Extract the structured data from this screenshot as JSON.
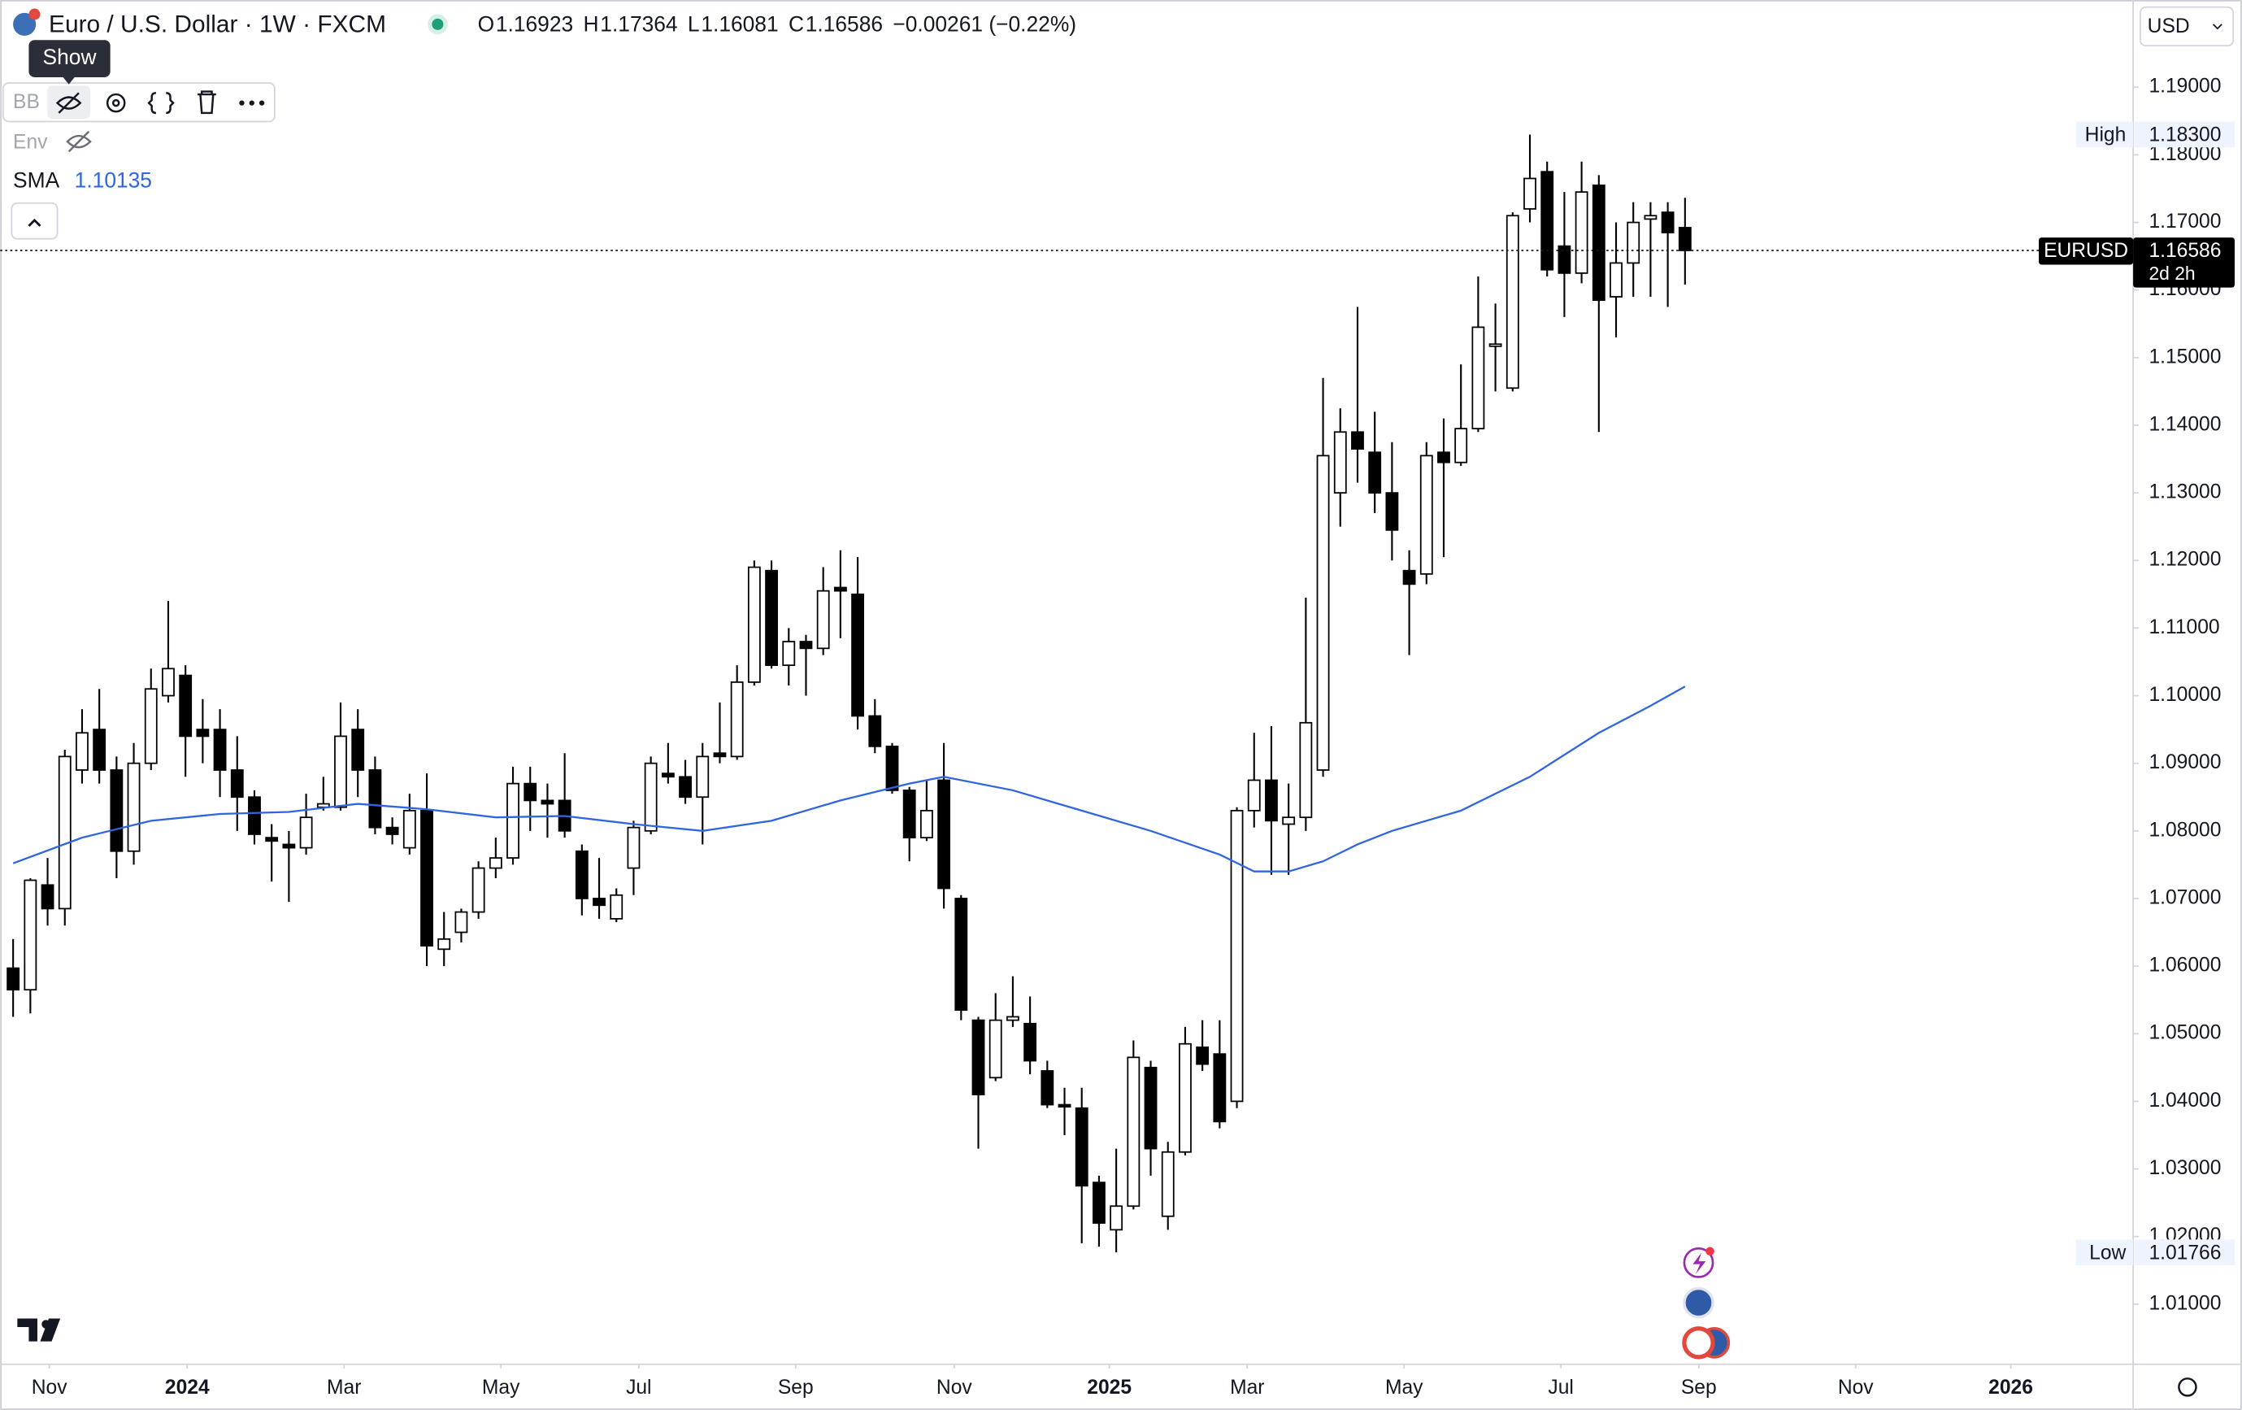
{
  "header": {
    "title": "Euro / U.S. Dollar · 1W · FXCM",
    "ohlc": [
      {
        "label": "O",
        "value": "1.16923"
      },
      {
        "label": "H",
        "value": "1.17364"
      },
      {
        "label": "L",
        "value": "1.16081"
      },
      {
        "label": "C",
        "value": "1.16586"
      }
    ],
    "change": "−0.00261 (−0.22%)",
    "tooltip": "Show",
    "currency": "USD"
  },
  "indicators": [
    {
      "name": "BB"
    },
    {
      "name": "Env"
    },
    {
      "name": "SMA",
      "value": "1.10135"
    }
  ],
  "chart_data": {
    "type": "candlestick",
    "x": [
      0,
      1,
      2,
      3,
      4,
      5,
      6,
      7,
      8,
      9,
      10,
      11,
      12,
      13,
      14,
      15,
      16,
      17,
      18,
      19,
      20,
      21,
      22,
      23,
      24,
      25,
      26,
      27,
      28,
      29,
      30,
      31,
      32,
      33,
      34,
      35,
      36,
      37,
      38,
      39,
      40,
      41,
      42,
      43,
      44,
      45,
      46,
      47,
      48,
      49,
      50,
      51,
      52,
      53,
      54,
      55,
      56,
      57,
      58,
      59,
      60,
      61,
      62,
      63,
      64,
      65,
      66,
      67,
      68,
      69,
      70,
      71,
      72,
      73,
      74,
      75,
      76,
      77,
      78,
      79,
      80,
      81,
      82,
      83,
      84,
      85,
      86,
      87,
      88,
      89,
      90,
      91,
      92,
      93,
      94,
      95,
      96,
      97
    ],
    "open": [
      1.0597,
      1.0565,
      1.072,
      1.0685,
      1.089,
      1.095,
      1.089,
      1.077,
      1.09,
      1.1,
      1.103,
      1.095,
      1.095,
      1.089,
      1.085,
      1.079,
      1.078,
      1.0775,
      1.0835,
      1.0835,
      1.095,
      1.089,
      1.0805,
      1.0775,
      1.083,
      1.0625,
      1.065,
      1.068,
      1.0745,
      1.076,
      1.087,
      1.0845,
      1.0845,
      1.077,
      1.07,
      1.067,
      1.0745,
      1.08,
      1.0885,
      1.088,
      1.085,
      1.0915,
      1.091,
      1.102,
      1.1185,
      1.1045,
      1.108,
      1.107,
      1.116,
      1.115,
      1.097,
      1.0925,
      1.086,
      1.079,
      1.0875,
      1.07,
      1.052,
      1.0435,
      1.052,
      1.0515,
      1.0445,
      1.0395,
      1.039,
      1.028,
      1.021,
      1.0245,
      1.045,
      1.023,
      1.0325,
      1.048,
      1.047,
      1.04,
      1.083,
      1.0875,
      1.081,
      1.082,
      1.089,
      1.13,
      1.139,
      1.136,
      1.13,
      1.1185,
      1.118,
      1.136,
      1.1345,
      1.1395,
      1.152,
      1.1455,
      1.172,
      1.1775,
      1.1665,
      1.1625,
      1.1755,
      1.159,
      1.164,
      1.1705,
      1.1715,
      1.16923
    ],
    "high": [
      1.064,
      1.073,
      1.076,
      1.092,
      1.098,
      1.101,
      1.091,
      1.093,
      1.104,
      1.114,
      1.1045,
      1.0995,
      1.098,
      1.094,
      1.086,
      1.081,
      1.08,
      1.0855,
      1.088,
      1.099,
      1.098,
      1.091,
      1.082,
      1.0855,
      1.0885,
      1.068,
      1.0685,
      1.0755,
      1.079,
      1.0895,
      1.0895,
      1.087,
      1.0915,
      1.078,
      1.076,
      1.0715,
      1.0815,
      1.091,
      1.093,
      1.0905,
      1.093,
      1.099,
      1.1045,
      1.12,
      1.12,
      1.11,
      1.109,
      1.119,
      1.1215,
      1.1205,
      1.0995,
      1.093,
      1.0865,
      1.0875,
      1.093,
      1.0705,
      1.0525,
      1.056,
      1.0585,
      1.0555,
      1.046,
      1.042,
      1.042,
      1.029,
      1.033,
      1.049,
      1.046,
      1.034,
      1.051,
      1.052,
      1.052,
      1.0835,
      1.0945,
      1.0955,
      1.087,
      1.1145,
      1.147,
      1.1425,
      1.1575,
      1.142,
      1.1375,
      1.1215,
      1.1375,
      1.141,
      1.149,
      1.162,
      1.158,
      1.1715,
      1.183,
      1.179,
      1.1745,
      1.179,
      1.177,
      1.17,
      1.173,
      1.173,
      1.173,
      1.17364
    ],
    "low": [
      1.0525,
      1.053,
      1.066,
      1.066,
      1.087,
      1.087,
      1.073,
      1.075,
      1.089,
      1.099,
      1.088,
      1.09,
      1.085,
      1.08,
      1.078,
      1.0725,
      1.0695,
      1.0765,
      1.083,
      1.083,
      1.085,
      1.0795,
      1.078,
      1.0765,
      1.06,
      1.06,
      1.0635,
      1.067,
      1.073,
      1.075,
      1.08,
      1.079,
      1.079,
      1.0675,
      1.067,
      1.0665,
      1.0705,
      1.0795,
      1.087,
      1.084,
      1.078,
      1.09,
      1.0905,
      1.1015,
      1.104,
      1.1015,
      1.1,
      1.106,
      1.1085,
      1.095,
      1.0915,
      1.0855,
      1.0755,
      1.0785,
      1.0685,
      1.052,
      1.033,
      1.043,
      1.051,
      1.044,
      1.039,
      1.035,
      1.019,
      1.0185,
      1.01766,
      1.024,
      1.029,
      1.021,
      1.032,
      1.0445,
      1.036,
      1.039,
      1.0805,
      1.0735,
      1.0735,
      1.08,
      1.088,
      1.125,
      1.1315,
      1.127,
      1.12,
      1.106,
      1.1165,
      1.1205,
      1.134,
      1.139,
      1.145,
      1.145,
      1.17,
      1.162,
      1.156,
      1.161,
      1.139,
      1.153,
      1.159,
      1.159,
      1.1575,
      1.16081
    ],
    "close": [
      1.0565,
      1.0727,
      1.0685,
      1.091,
      1.0945,
      1.089,
      1.077,
      1.09,
      1.101,
      1.104,
      1.094,
      1.094,
      1.089,
      1.085,
      1.0795,
      1.0785,
      1.0775,
      1.082,
      1.084,
      1.094,
      1.089,
      1.0805,
      1.0795,
      1.083,
      1.063,
      1.064,
      1.068,
      1.0745,
      1.076,
      1.087,
      1.0845,
      1.084,
      1.08,
      1.07,
      1.069,
      1.0705,
      1.0805,
      1.09,
      1.088,
      1.085,
      1.091,
      1.091,
      1.102,
      1.119,
      1.1045,
      1.108,
      1.107,
      1.1155,
      1.1155,
      1.097,
      1.0925,
      1.086,
      1.079,
      1.083,
      1.0715,
      1.0535,
      1.041,
      1.052,
      1.0525,
      1.046,
      1.0395,
      1.0393,
      1.0275,
      1.022,
      1.0245,
      1.0465,
      1.033,
      1.0325,
      1.0485,
      1.0455,
      1.037,
      1.083,
      1.0875,
      1.0815,
      1.082,
      1.096,
      1.1355,
      1.139,
      1.1365,
      1.13,
      1.1245,
      1.1165,
      1.1355,
      1.1345,
      1.1395,
      1.1545,
      1.152,
      1.171,
      1.1765,
      1.163,
      1.1625,
      1.1745,
      1.1585,
      1.164,
      1.17,
      1.171,
      1.1685,
      1.16586
    ],
    "up_color": "#ffffff",
    "down_color": "#000000",
    "wick_color": "#000000",
    "sma": {
      "name": "SMA",
      "color": "#2f66e0",
      "x": [
        0,
        4,
        8,
        12,
        16,
        20,
        24,
        28,
        32,
        36,
        40,
        44,
        48,
        52,
        54,
        58,
        62,
        66,
        70,
        72,
        74,
        76,
        78,
        80,
        84,
        88,
        92,
        95,
        97
      ],
      "values": [
        1.0752,
        1.079,
        1.0815,
        1.0825,
        1.0828,
        1.084,
        1.0832,
        1.082,
        1.0822,
        1.081,
        1.08,
        1.0815,
        1.0845,
        1.087,
        1.088,
        1.086,
        1.083,
        1.08,
        1.0765,
        1.074,
        1.074,
        1.0755,
        1.078,
        1.08,
        1.083,
        1.088,
        1.0945,
        1.0985,
        1.10135
      ]
    },
    "xlim": [
      -0.75,
      123.0
    ],
    "xticks": [
      {
        "value": 2.1,
        "label": "Nov"
      },
      {
        "value": 10.1,
        "label": "2024"
      },
      {
        "value": 19.2,
        "label": "Mar"
      },
      {
        "value": 28.3,
        "label": "May"
      },
      {
        "value": 36.3,
        "label": "Jul"
      },
      {
        "value": 45.4,
        "label": "Sep"
      },
      {
        "value": 54.6,
        "label": "Nov"
      },
      {
        "value": 63.6,
        "label": "2025"
      },
      {
        "value": 71.6,
        "label": "Mar"
      },
      {
        "value": 80.7,
        "label": "May"
      },
      {
        "value": 89.8,
        "label": "Jul"
      },
      {
        "value": 97.8,
        "label": "Sep"
      },
      {
        "value": 106.9,
        "label": "Nov"
      },
      {
        "value": 115.9,
        "label": "2026"
      }
    ],
    "ylim": [
      1.00111,
      1.2029
    ],
    "yticks": [
      {
        "value": 1.19,
        "label": "1.19000"
      },
      {
        "value": 1.18,
        "label": "1.18000"
      },
      {
        "value": 1.17,
        "label": "1.17000"
      },
      {
        "value": 1.16,
        "label": "1.16000"
      },
      {
        "value": 1.15,
        "label": "1.15000"
      },
      {
        "value": 1.14,
        "label": "1.14000"
      },
      {
        "value": 1.13,
        "label": "1.13000"
      },
      {
        "value": 1.12,
        "label": "1.12000"
      },
      {
        "value": 1.11,
        "label": "1.11000"
      },
      {
        "value": 1.1,
        "label": "1.10000"
      },
      {
        "value": 1.09,
        "label": "1.09000"
      },
      {
        "value": 1.08,
        "label": "1.08000"
      },
      {
        "value": 1.07,
        "label": "1.07000"
      },
      {
        "value": 1.06,
        "label": "1.06000"
      },
      {
        "value": 1.05,
        "label": "1.05000"
      },
      {
        "value": 1.04,
        "label": "1.04000"
      },
      {
        "value": 1.03,
        "label": "1.03000"
      },
      {
        "value": 1.02,
        "label": "1.02000"
      },
      {
        "value": 1.01,
        "label": "1.01000"
      }
    ],
    "markers": [
      {
        "label": "High",
        "value": 1.183,
        "value_label": "1.18300"
      },
      {
        "label": "Low",
        "value": 1.01766,
        "value_label": "1.01766"
      }
    ],
    "last_price": {
      "label": "EURUSD",
      "value": 1.16586,
      "value_label": "1.16586",
      "countdown": "2d 2h"
    }
  }
}
